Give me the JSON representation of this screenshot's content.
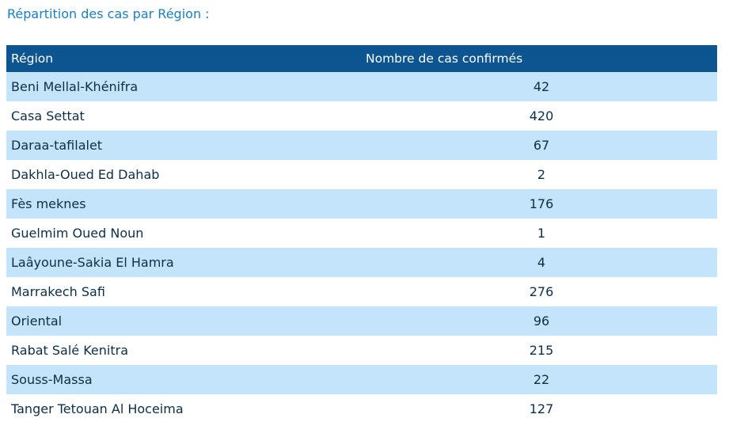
{
  "heading": "Répartition des cas par Région :",
  "table": {
    "headers": {
      "region": "Région",
      "count": "Nombre de cas confirmés"
    },
    "rows": [
      {
        "region": "Beni Mellal-Khénifra",
        "count": "42"
      },
      {
        "region": "Casa Settat",
        "count": "420"
      },
      {
        "region": "Daraa-tafilalet",
        "count": "67"
      },
      {
        "region": "Dakhla-Oued Ed Dahab",
        "count": "2"
      },
      {
        "region": "Fès meknes",
        "count": "176"
      },
      {
        "region": "Guelmim Oued Noun",
        "count": "1"
      },
      {
        "region": "Laâyoune-Sakia El Hamra",
        "count": "4"
      },
      {
        "region": "Marrakech Safi",
        "count": "276"
      },
      {
        "region": "Oriental",
        "count": "96"
      },
      {
        "region": "Rabat Salé Kenitra",
        "count": "215"
      },
      {
        "region": "Souss-Massa",
        "count": "22"
      },
      {
        "region": "Tanger Tetouan Al Hoceima",
        "count": "127"
      }
    ]
  },
  "colors": {
    "heading": "#1a7fc4",
    "header_bg": "#0c5590",
    "row_alt_bg": "#c4e4fb",
    "row_text": "#0d2f46"
  }
}
